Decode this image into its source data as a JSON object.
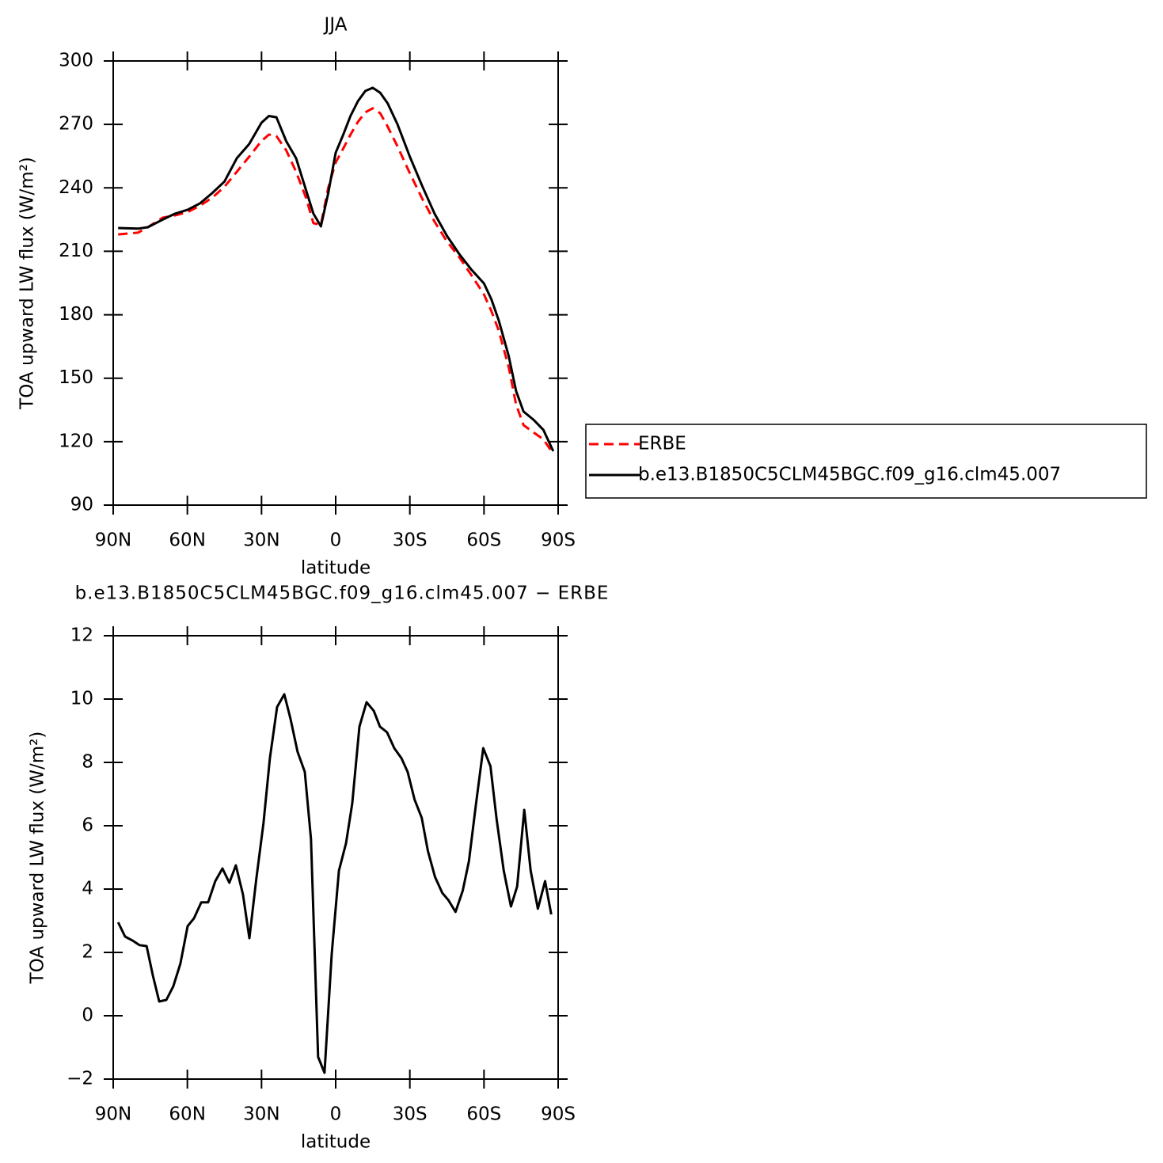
{
  "chart_data": [
    {
      "type": "line",
      "title": "JJA",
      "xlabel": "latitude",
      "ylabel": "TOA upward LW flux (W/m²)",
      "xlim": [
        90,
        -90
      ],
      "xticks": [
        {
          "value": 90,
          "label": "90N"
        },
        {
          "value": 60,
          "label": "60N"
        },
        {
          "value": 30,
          "label": "30N"
        },
        0,
        {
          "value": -30,
          "label": "30S"
        },
        {
          "value": -60,
          "label": "60S"
        },
        {
          "value": -90,
          "label": "90S"
        }
      ],
      "ylim": [
        90,
        300
      ],
      "yticks": [
        90,
        120,
        150,
        180,
        210,
        240,
        270,
        300
      ],
      "legend": "right",
      "x": [
        88,
        80,
        76,
        70,
        65,
        60,
        55,
        50,
        45,
        40,
        35,
        30,
        27,
        24,
        20,
        16,
        12,
        9,
        6,
        3,
        0,
        -3,
        -6,
        -9,
        -12,
        -15,
        -18,
        -21,
        -25,
        -30,
        -35,
        -40,
        -45,
        -50,
        -55,
        -60,
        -63,
        -66,
        -70,
        -73,
        -76,
        -80,
        -84,
        -88
      ],
      "series": [
        {
          "name": "ERBE",
          "color": "#ff0000",
          "dashed": true,
          "values": [
            218,
            218.8,
            221.4,
            225.9,
            227,
            228.5,
            231.5,
            235.3,
            240.5,
            247.6,
            254.7,
            262.2,
            265.2,
            264.5,
            257.7,
            247.6,
            235.3,
            223.3,
            222.5,
            240,
            252,
            258.5,
            265.2,
            271.2,
            275.7,
            277.6,
            275.3,
            269,
            259.6,
            246.9,
            234.9,
            224,
            214.7,
            207.2,
            198.6,
            189.6,
            181.7,
            172.4,
            155.1,
            137.5,
            127.8,
            124.4,
            121.1,
            114.3
          ]
        },
        {
          "name": "b.e13.B1850C5CLM45BGC.f09_g16.clm45.007",
          "color": "#000000",
          "dashed": false,
          "values": [
            221,
            220.7,
            221.4,
            225,
            227.8,
            229.6,
            232.6,
            237.5,
            243,
            254,
            260.7,
            270.8,
            274,
            273.4,
            262,
            254,
            239,
            227.8,
            221.8,
            237.5,
            256.6,
            265,
            274,
            281,
            285.8,
            287.3,
            285,
            280,
            270,
            254.7,
            240.9,
            227.8,
            217.3,
            208.7,
            201.2,
            194.8,
            187.3,
            177.2,
            160.4,
            143.9,
            134.2,
            130.4,
            125.6,
            115.5
          ]
        }
      ]
    },
    {
      "type": "line",
      "title": "b.e13.B1850C5CLM45BGC.f09_g16.clm45.007 − ERBE",
      "xlabel": "latitude",
      "ylabel": "TOA upward LW flux (W/m²)",
      "xlim": [
        90,
        -90
      ],
      "xticks": [
        {
          "value": 90,
          "label": "90N"
        },
        {
          "value": 60,
          "label": "60N"
        },
        {
          "value": 30,
          "label": "30N"
        },
        0,
        {
          "value": -30,
          "label": "30S"
        },
        {
          "value": -60,
          "label": "60S"
        },
        {
          "value": -90,
          "label": "90S"
        }
      ],
      "ylim": [
        -2,
        12
      ],
      "yticks": [
        {
          "value": -2,
          "label": "−2"
        },
        0,
        2,
        4,
        6,
        8,
        10,
        12
      ],
      "color": "#000000",
      "x": [
        88,
        85.2,
        82.3,
        79.4,
        76.5,
        74,
        71.4,
        68.5,
        65.7,
        62.8,
        59.9,
        57.3,
        54.4,
        51.6,
        48.7,
        45.8,
        43,
        40.4,
        37.5,
        34.9,
        32.1,
        29.2,
        26.6,
        23.7,
        20.8,
        18.3,
        15.4,
        12.5,
        10,
        7.1,
        4.5,
        1.6,
        -1.3,
        -4.2,
        -6.7,
        -9.6,
        -12.5,
        -15.4,
        -17.9,
        -20.8,
        -23.7,
        -26.6,
        -29.1,
        -31.9,
        -34.8,
        -37.3,
        -40.2,
        -43.1,
        -45.6,
        -48.5,
        -51.4,
        -53.9,
        -56.8,
        -59.7,
        -62.6,
        -65.1,
        -68,
        -70.9,
        -73.4,
        -76.3,
        -78.9,
        -81.8,
        -84.7,
        -87.2
      ],
      "values": [
        2.95,
        2.5,
        2.38,
        2.23,
        2.2,
        1.28,
        0.45,
        0.5,
        0.93,
        1.65,
        2.83,
        3.08,
        3.58,
        3.58,
        4.25,
        4.65,
        4.2,
        4.75,
        3.83,
        2.45,
        4.33,
        6.08,
        8.13,
        9.75,
        10.15,
        9.38,
        8.33,
        7.7,
        5.58,
        -1.3,
        -1.8,
        1.95,
        4.58,
        5.45,
        6.7,
        9.13,
        9.9,
        9.63,
        9.13,
        8.95,
        8.45,
        8.13,
        7.7,
        6.83,
        6.25,
        5.2,
        4.38,
        3.88,
        3.65,
        3.28,
        3.95,
        4.88,
        6.7,
        8.45,
        7.88,
        6.2,
        4.58,
        3.45,
        4.08,
        6.5,
        4.58,
        3.38,
        4.25,
        3.2
      ]
    }
  ]
}
